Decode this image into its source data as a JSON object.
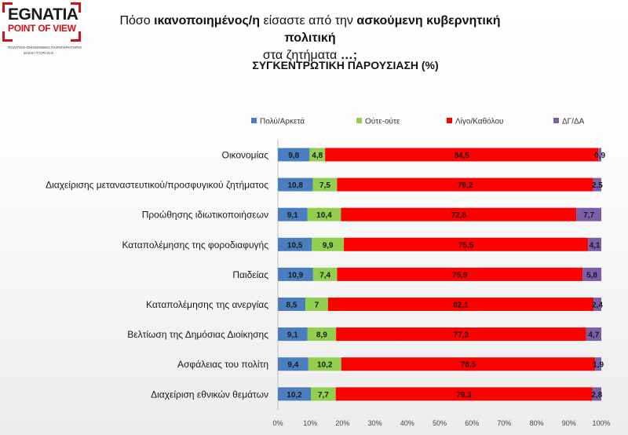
{
  "logo": {
    "brand": "EGNATIA",
    "sub": "POINT OF VIEW",
    "tagline1": "ΠΟΛΙΤΙΚΟ-ΟΙΚΟΝΟΜΙΚΟ ΠΑΡΑΤΗΡΗΤΗΡΙΟ",
    "tagline2": "MONITORING"
  },
  "header": {
    "title_part1": "Πόσο ",
    "title_bold1": "ικανοποιημένος/η",
    "title_part2": " είσαστε από την ",
    "title_bold2": "ασκούμενη κυβερνητική πολιτική",
    "title_line2": "στα ζητήματα ",
    "title_bold3": "…;",
    "subtitle": "ΣΥΓΚΕΝΤΡΩΤΙΚΗ ΠΑΡΟΥΣΙΑΣΗ (%)"
  },
  "chart_data": {
    "type": "bar",
    "orientation": "horizontal",
    "stacked": "100%",
    "categories": [
      "Οικονομίας",
      "Διαχείρισης μεταναστευτικού/προσφυγικού ζητήματος",
      "Προώθησης ιδιωτικοποιήσεων",
      "Καταπολέμησης της φοροδιαφυγής",
      "Παιδείας",
      "Καταπολέμησης της ανεργίας",
      "Βελτίωση της Δημόσιας Διοίκησης",
      "Ασφάλειας του πολίτη",
      "Διαχείριση εθνικών θεμάτων"
    ],
    "series": [
      {
        "name": "Πολύ/Αρκετά",
        "color": "#4a7ebf",
        "values": [
          9.8,
          10.8,
          9.1,
          10.5,
          10.9,
          8.5,
          9.1,
          9.4,
          10.2
        ],
        "labels": [
          "9,8",
          "10,8",
          "9,1",
          "10,5",
          "10,9",
          "8,5",
          "9,1",
          "9,4",
          "10,2"
        ]
      },
      {
        "name": "Ούτε-ούτε",
        "color": "#92cf4f",
        "values": [
          4.8,
          7.5,
          10.4,
          9.9,
          7.4,
          7,
          8.9,
          10.2,
          7.7
        ],
        "labels": [
          "4,8",
          "7,5",
          "10,4",
          "9,9",
          "7,4",
          "7",
          "8,9",
          "10,2",
          "7,7"
        ]
      },
      {
        "name": "Λίγο/Καθόλου",
        "color": "#ff0000",
        "values": [
          84.5,
          79.2,
          72.8,
          75.5,
          75.9,
          82.1,
          77.3,
          78.5,
          79.3
        ],
        "labels": [
          "84,5",
          "79,2",
          "72,8",
          "75,5",
          "75,9",
          "82,1",
          "77,3",
          "78,5",
          "79,3"
        ]
      },
      {
        "name": "ΔΓ/ΔΑ",
        "color": "#7b5ea7",
        "values": [
          0.9,
          2.5,
          7.7,
          4.1,
          5.8,
          2.4,
          4.7,
          1.9,
          2.8
        ],
        "labels": [
          "0,9",
          "2,5",
          "7,7",
          "4,1",
          "5,8",
          "2,4",
          "4,7",
          "1,9",
          "2,8"
        ]
      }
    ],
    "x_ticks": [
      "0%",
      "10%",
      "20%",
      "30%",
      "40%",
      "50%",
      "60%",
      "70%",
      "80%",
      "90%",
      "100%"
    ],
    "xlim": [
      0,
      100
    ],
    "legend_position": "top",
    "grid": false
  }
}
